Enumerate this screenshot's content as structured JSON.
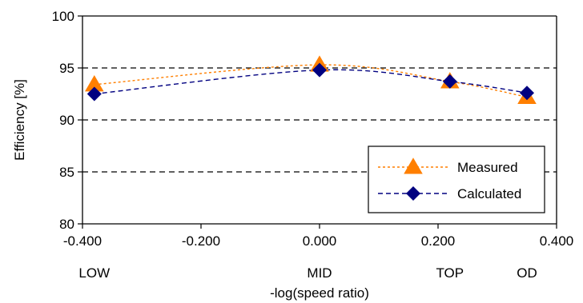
{
  "chart_data": {
    "type": "line",
    "xlabel": "-log(speed ratio)",
    "ylabel": "Efficiency [%]",
    "xlim": [
      -0.4,
      0.4
    ],
    "ylim": [
      80,
      100
    ],
    "x_ticks": [
      -0.4,
      -0.2,
      0.0,
      0.2,
      0.4
    ],
    "x_tick_labels": [
      "-0.400",
      "-0.200",
      "0.000",
      "0.200",
      "0.400"
    ],
    "y_ticks": [
      80,
      85,
      90,
      95,
      100
    ],
    "y_tick_labels": [
      "80",
      "85",
      "90",
      "95",
      "100"
    ],
    "dashed_gridlines_y": [
      85,
      90,
      95
    ],
    "gear_labels": [
      {
        "x": -0.38,
        "label": "LOW"
      },
      {
        "x": 0.0,
        "label": "MID"
      },
      {
        "x": 0.22,
        "label": "TOP"
      },
      {
        "x": 0.35,
        "label": "OD"
      }
    ],
    "legend_position": "lower-right",
    "series": [
      {
        "name": "Measured",
        "marker": "triangle",
        "line_style": "dotted",
        "color": "#FF7F00",
        "x": [
          -0.38,
          0.0,
          0.22,
          0.35
        ],
        "y": [
          93.4,
          95.3,
          93.7,
          92.2
        ]
      },
      {
        "name": "Calculated",
        "marker": "diamond",
        "line_style": "dashed",
        "color": "#000080",
        "x": [
          -0.38,
          0.0,
          0.22,
          0.35
        ],
        "y": [
          92.5,
          94.8,
          93.7,
          92.6
        ]
      }
    ]
  }
}
